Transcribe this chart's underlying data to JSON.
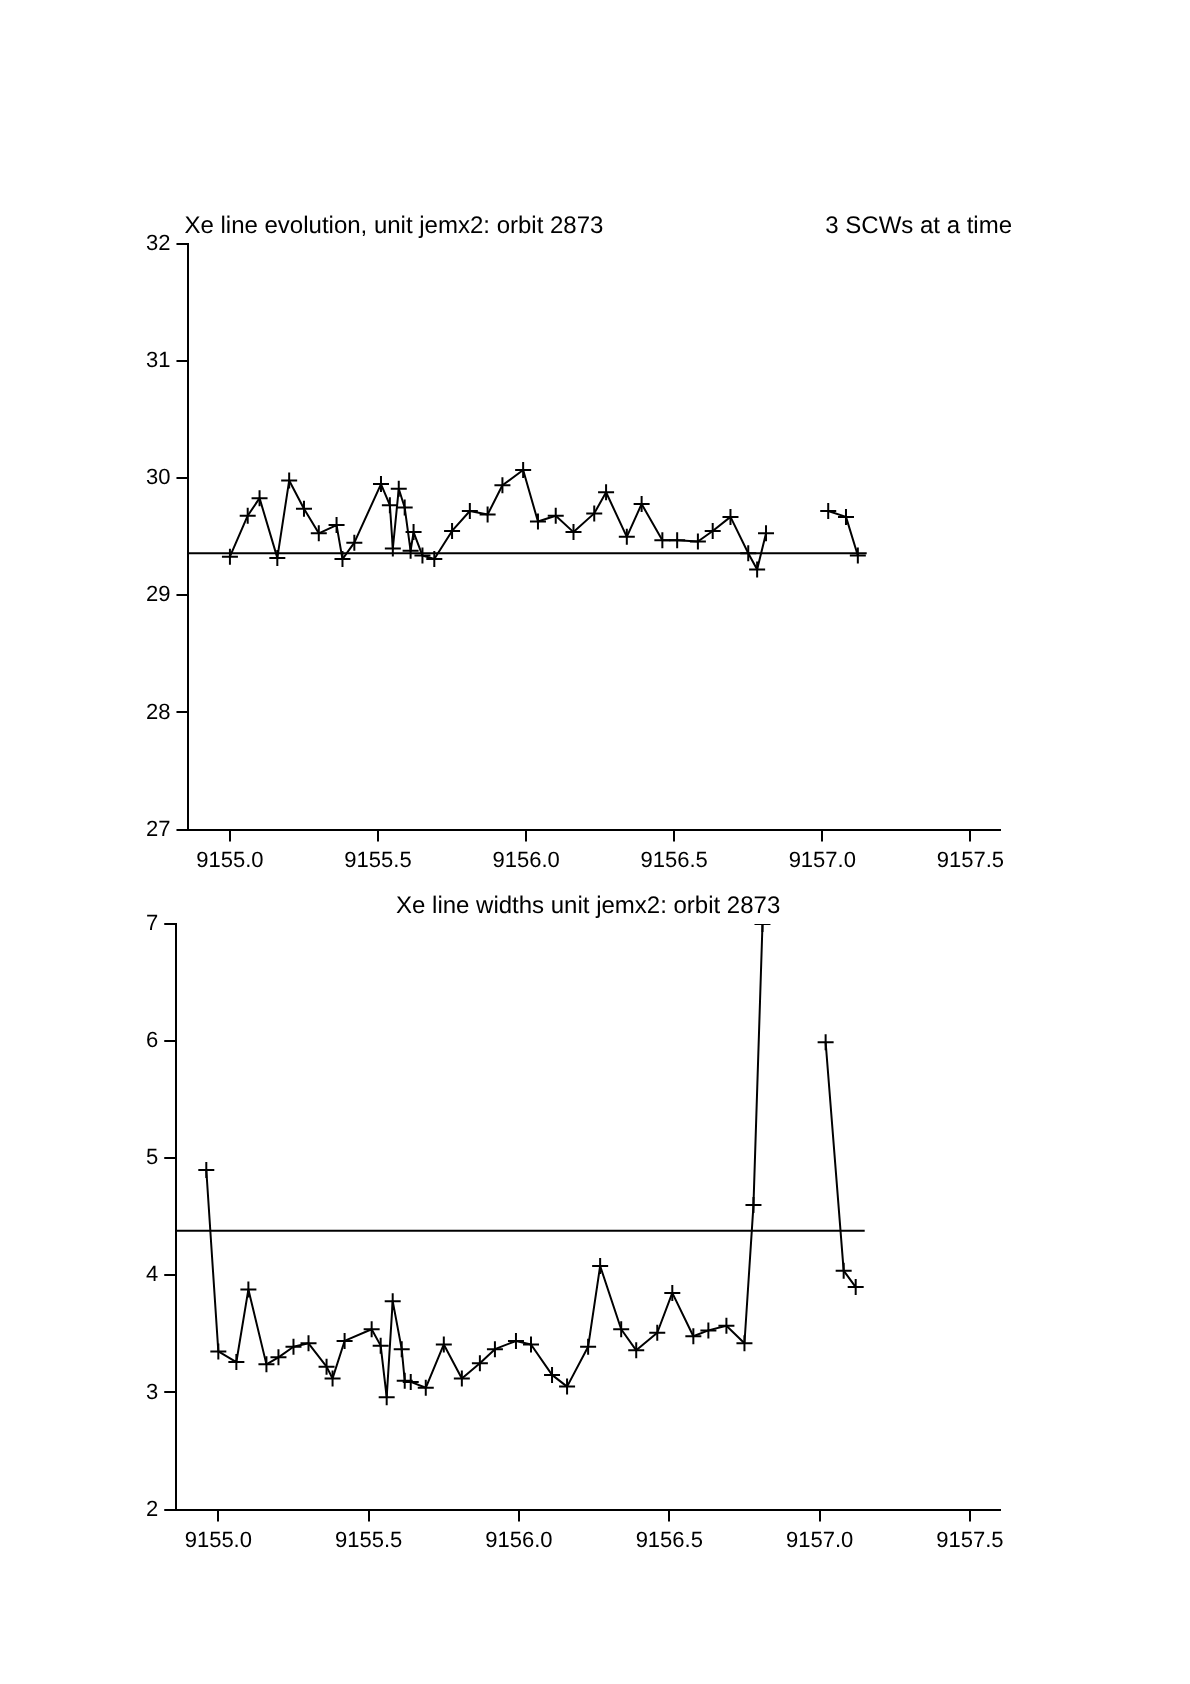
{
  "chart_data": [
    {
      "type": "line",
      "title": "Xe line evolution, unit jemx2: orbit 2873",
      "subtitle": "3 SCWs at a time",
      "grid": false,
      "xlim": [
        9154.86,
        9157.6
      ],
      "xticks": [
        {
          "value": 9155,
          "label": "9155.0"
        },
        {
          "value": 9155.5,
          "label": "9155.5"
        },
        {
          "value": 9156,
          "label": "9156.0"
        },
        {
          "value": 9156.5,
          "label": "9156.5"
        },
        {
          "value": 9157,
          "label": "9157.0"
        },
        {
          "value": 9157.5,
          "label": "9157.5"
        }
      ],
      "ylim": [
        27,
        32
      ],
      "yticks": [
        27,
        28,
        29,
        30,
        31,
        32
      ],
      "series": [
        {
          "color": "#000000",
          "marker": "cross",
          "line_style": "solid",
          "x": [
            9155.0,
            9155.06,
            9155.1,
            9155.16,
            9155.2,
            9155.25,
            9155.3,
            9155.36,
            9155.38,
            9155.42,
            9155.51,
            9155.54,
            9155.55,
            9155.57,
            9155.59,
            9155.61,
            9155.62,
            9155.65,
            9155.69,
            9155.75,
            9155.81,
            9155.87,
            9155.92,
            9155.99,
            9156.04,
            9156.1,
            9156.16,
            9156.23,
            9156.27,
            9156.34,
            9156.39,
            9156.46,
            9156.51,
            9156.58,
            9156.63,
            9156.69,
            9156.75,
            9156.78,
            9156.81,
            9156.9,
            9157.02,
            9157.08,
            9157.12
          ],
          "values": [
            29.33,
            29.68,
            29.83,
            29.32,
            29.98,
            29.74,
            29.53,
            29.6,
            29.31,
            29.45,
            29.95,
            29.77,
            29.4,
            29.91,
            29.75,
            29.38,
            29.54,
            29.34,
            29.31,
            29.55,
            29.72,
            29.69,
            29.94,
            30.07,
            29.63,
            29.68,
            29.54,
            29.7,
            29.88,
            29.5,
            29.78,
            29.47,
            29.47,
            29.46,
            29.55,
            29.67,
            29.36,
            29.22,
            29.53,
            null,
            29.72,
            29.67,
            29.34
          ]
        },
        {
          "color": "#000000",
          "marker": "none",
          "line_style": "solid",
          "x": [
            9154.86,
            9157.15
          ],
          "values": [
            29.36,
            29.36
          ]
        }
      ]
    },
    {
      "type": "line",
      "title": "Xe line widths unit jemx2: orbit 2873",
      "grid": false,
      "xlim": [
        9154.86,
        9157.6
      ],
      "xticks": [
        {
          "value": 9155,
          "label": "9155.0"
        },
        {
          "value": 9155.5,
          "label": "9155.5"
        },
        {
          "value": 9156,
          "label": "9156.0"
        },
        {
          "value": 9156.5,
          "label": "9156.5"
        },
        {
          "value": 9157,
          "label": "9157.0"
        },
        {
          "value": 9157.5,
          "label": "9157.5"
        }
      ],
      "ylim": [
        2,
        7
      ],
      "yticks": [
        2,
        3,
        4,
        5,
        6,
        7
      ],
      "series": [
        {
          "color": "#000000",
          "marker": "cross",
          "line_style": "solid",
          "x": [
            9154.96,
            9155.0,
            9155.06,
            9155.1,
            9155.16,
            9155.2,
            9155.25,
            9155.3,
            9155.36,
            9155.38,
            9155.42,
            9155.51,
            9155.54,
            9155.56,
            9155.58,
            9155.61,
            9155.62,
            9155.64,
            9155.69,
            9155.75,
            9155.81,
            9155.87,
            9155.92,
            9155.99,
            9156.04,
            9156.11,
            9156.16,
            9156.23,
            9156.27,
            9156.34,
            9156.39,
            9156.46,
            9156.51,
            9156.58,
            9156.63,
            9156.69,
            9156.75,
            9156.78,
            9156.81,
            9156.9,
            9157.02,
            9157.08,
            9157.12
          ],
          "values": [
            4.9,
            3.35,
            3.26,
            3.88,
            3.24,
            3.3,
            3.39,
            3.42,
            3.22,
            3.12,
            3.44,
            3.54,
            3.4,
            2.96,
            3.78,
            3.37,
            3.1,
            3.09,
            3.04,
            3.41,
            3.12,
            3.25,
            3.37,
            3.44,
            3.41,
            3.15,
            3.05,
            3.39,
            4.08,
            3.54,
            3.36,
            3.51,
            3.85,
            3.48,
            3.53,
            3.57,
            3.42,
            4.6,
            7.0,
            null,
            5.99,
            4.04,
            3.9
          ]
        },
        {
          "color": "#000000",
          "marker": "none",
          "line_style": "solid",
          "x": [
            9154.86,
            9157.15
          ],
          "values": [
            4.38,
            4.38
          ]
        }
      ]
    }
  ]
}
